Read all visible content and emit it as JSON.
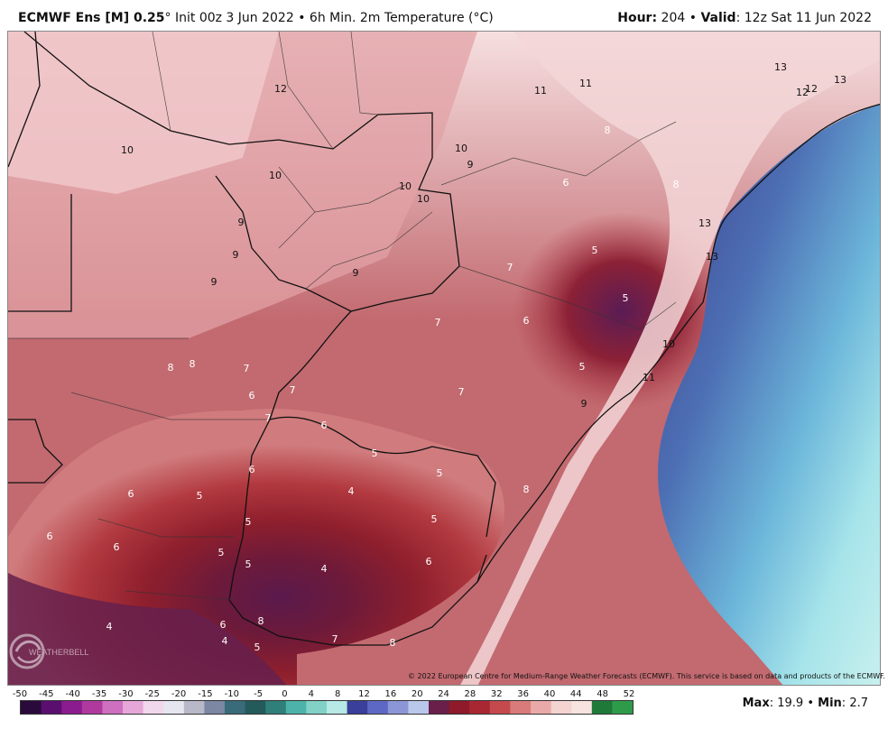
{
  "header": {
    "model_bold": "ECMWF Ens [M] 0.25",
    "model_deg": "°",
    "init": "Init 00z 3 Jun 2022",
    "bullet": "•",
    "product": "6h Min. 2m Temperature (°C)",
    "hour_label": "Hour",
    "hour_value": "204",
    "valid_label": "Valid",
    "valid_value": "12z Sat 11 Jun 2022"
  },
  "map": {
    "contour_labels": [
      {
        "text": "12",
        "light": false
      },
      {
        "text": "11",
        "light": false
      },
      {
        "text": "11",
        "light": false
      },
      {
        "text": "13",
        "light": false
      },
      {
        "text": "12",
        "light": false
      },
      {
        "text": "12",
        "light": false
      },
      {
        "text": "13",
        "light": false
      },
      {
        "text": "10",
        "light": false
      },
      {
        "text": "10",
        "light": false
      },
      {
        "text": "9",
        "light": false
      },
      {
        "text": "10",
        "light": false
      },
      {
        "text": "10",
        "light": false
      },
      {
        "text": "10",
        "light": false
      },
      {
        "text": "9",
        "light": false
      },
      {
        "text": "9",
        "light": false
      },
      {
        "text": "9",
        "light": false
      },
      {
        "text": "9",
        "light": false
      },
      {
        "text": "8",
        "light": true
      },
      {
        "text": "6",
        "light": true
      },
      {
        "text": "8",
        "light": true
      },
      {
        "text": "13",
        "light": false
      },
      {
        "text": "13",
        "light": false
      },
      {
        "text": "5",
        "light": true
      },
      {
        "text": "7",
        "light": true
      },
      {
        "text": "5",
        "light": true
      },
      {
        "text": "7",
        "light": true
      },
      {
        "text": "6",
        "light": true
      },
      {
        "text": "10",
        "light": false
      },
      {
        "text": "5",
        "light": true
      },
      {
        "text": "11",
        "light": false
      },
      {
        "text": "8",
        "light": true
      },
      {
        "text": "8",
        "light": true
      },
      {
        "text": "7",
        "light": true
      },
      {
        "text": "6",
        "light": true
      },
      {
        "text": "7",
        "light": true
      },
      {
        "text": "7",
        "light": true
      },
      {
        "text": "7",
        "light": true
      },
      {
        "text": "9",
        "light": false
      },
      {
        "text": "6",
        "light": true
      },
      {
        "text": "5",
        "light": true
      },
      {
        "text": "5",
        "light": true
      },
      {
        "text": "4",
        "light": true
      },
      {
        "text": "6",
        "light": true
      },
      {
        "text": "6",
        "light": true
      },
      {
        "text": "5",
        "light": true
      },
      {
        "text": "5",
        "light": true
      },
      {
        "text": "8",
        "light": true
      },
      {
        "text": "6",
        "light": true
      },
      {
        "text": "6",
        "light": true
      },
      {
        "text": "5",
        "light": true
      },
      {
        "text": "5",
        "light": true
      },
      {
        "text": "5",
        "light": true
      },
      {
        "text": "4",
        "light": true
      },
      {
        "text": "6",
        "light": true
      },
      {
        "text": "4",
        "light": true
      },
      {
        "text": "6",
        "light": true
      },
      {
        "text": "4",
        "light": true
      },
      {
        "text": "5",
        "light": true
      },
      {
        "text": "8",
        "light": true
      },
      {
        "text": "7",
        "light": true
      },
      {
        "text": "8",
        "light": true
      }
    ]
  },
  "copyright": "© 2022 European Centre for Medium-Range Weather Forecasts (ECMWF). This service is based on data and products of the ECMWF.",
  "logo_text": "WEATHERBELL",
  "colorbar": {
    "ticks": [
      "-50",
      "-45",
      "-40",
      "-35",
      "-30",
      "-25",
      "-20",
      "-15",
      "-10",
      "-5",
      "0",
      "4",
      "8",
      "12",
      "16",
      "20",
      "24",
      "28",
      "32",
      "36",
      "40",
      "44",
      "48",
      "52"
    ],
    "colors": [
      "#2a0a3a",
      "#5a0f6e",
      "#8a1c8f",
      "#b0399e",
      "#cf6fbf",
      "#e6a6d8",
      "#f1d7ec",
      "#e6e6f0",
      "#b8b8c8",
      "#7c87a3",
      "#3a6b7a",
      "#245a5a",
      "#2f7f7a",
      "#4db3aa",
      "#82d1c7",
      "#b7e9e6",
      "#3a3f9a",
      "#5d68c4",
      "#8b96d6",
      "#b9c7ea",
      "#6a1f4a",
      "#8e1a2a",
      "#a92733",
      "#c44a4e",
      "#d97b7a",
      "#e9a9a8",
      "#f4d3d1",
      "#f7e3df",
      "#1f7a3a",
      "#2e9b4a"
    ]
  },
  "stats": {
    "max_label": "Max",
    "max_value": "19.9",
    "sep": "•",
    "min_label": "Min",
    "min_value": "2.7"
  }
}
